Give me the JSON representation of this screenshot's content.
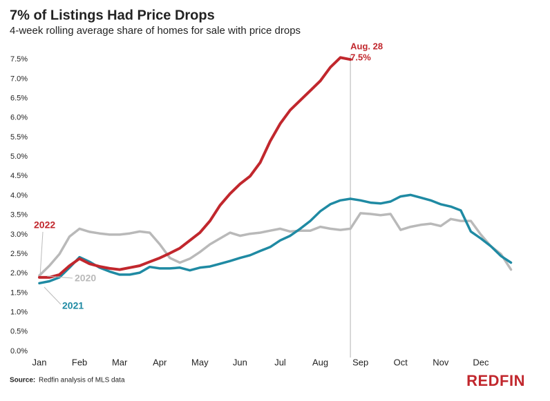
{
  "chart_data": {
    "type": "line",
    "title": "7% of Listings Had Price Drops",
    "subtitle": "4-week rolling average share of homes for sale with price drops",
    "source_label": "Source:",
    "source": "Redfin analysis of MLS data",
    "brand": "REDFIN",
    "x": [
      0,
      0.25,
      0.5,
      0.75,
      1,
      1.25,
      1.5,
      1.75,
      2,
      2.25,
      2.5,
      2.75,
      3,
      3.25,
      3.5,
      3.75,
      4,
      4.25,
      4.5,
      4.75,
      5,
      5.25,
      5.5,
      5.75,
      6,
      6.25,
      6.5,
      6.75,
      7,
      7.25,
      7.5,
      7.75,
      8,
      8.25,
      8.5,
      8.75,
      9,
      9.25,
      9.5,
      9.75,
      10,
      10.25,
      10.5,
      10.75,
      11,
      11.25,
      11.5,
      11.75
    ],
    "xlim": [
      0,
      12
    ],
    "xticks": [
      {
        "value": 0,
        "label": "Jan"
      },
      {
        "value": 1,
        "label": "Feb"
      },
      {
        "value": 2,
        "label": "Mar"
      },
      {
        "value": 3,
        "label": "Apr"
      },
      {
        "value": 4,
        "label": "May"
      },
      {
        "value": 5,
        "label": "Jun"
      },
      {
        "value": 6,
        "label": "Jul"
      },
      {
        "value": 7,
        "label": "Aug"
      },
      {
        "value": 8,
        "label": "Sep"
      },
      {
        "value": 9,
        "label": "Oct"
      },
      {
        "value": 10,
        "label": "Nov"
      },
      {
        "value": 11,
        "label": "Dec"
      }
    ],
    "ylim": [
      0,
      8
    ],
    "yticks": [
      {
        "value": 0,
        "label": "0.0%"
      },
      {
        "value": 0.5,
        "label": "0.5%"
      },
      {
        "value": 1,
        "label": "1.0%"
      },
      {
        "value": 1.5,
        "label": "1.5%"
      },
      {
        "value": 2,
        "label": "2.0%"
      },
      {
        "value": 2.5,
        "label": "2.5%"
      },
      {
        "value": 3,
        "label": "3.0%"
      },
      {
        "value": 3.5,
        "label": "3.5%"
      },
      {
        "value": 4,
        "label": "4.0%"
      },
      {
        "value": 4.5,
        "label": "4.5%"
      },
      {
        "value": 5,
        "label": "5.0%"
      },
      {
        "value": 5.5,
        "label": "5.5%"
      },
      {
        "value": 6,
        "label": "6.0%"
      },
      {
        "value": 6.5,
        "label": "6.5%"
      },
      {
        "value": 7,
        "label": "7.0%"
      },
      {
        "value": 7.5,
        "label": "7.5%"
      }
    ],
    "grid": false,
    "series": [
      {
        "name": "2020",
        "color": "#b9b9b9",
        "values": [
          1.95,
          2.2,
          2.5,
          2.95,
          3.15,
          3.07,
          3.03,
          3.0,
          3.0,
          3.03,
          3.08,
          3.05,
          2.75,
          2.4,
          2.28,
          2.38,
          2.55,
          2.75,
          2.9,
          3.05,
          2.97,
          3.02,
          3.05,
          3.1,
          3.15,
          3.08,
          3.1,
          3.1,
          3.2,
          3.15,
          3.12,
          3.15,
          3.55,
          3.53,
          3.5,
          3.53,
          3.12,
          3.2,
          3.25,
          3.28,
          3.22,
          3.4,
          3.35,
          3.35,
          3.0,
          2.7,
          2.5,
          2.1
        ]
      },
      {
        "name": "2021",
        "color": "#1f8aa3",
        "values": [
          1.75,
          1.8,
          1.9,
          2.15,
          2.42,
          2.3,
          2.15,
          2.05,
          1.97,
          1.97,
          2.02,
          2.17,
          2.13,
          2.13,
          2.15,
          2.08,
          2.15,
          2.18,
          2.25,
          2.32,
          2.4,
          2.47,
          2.58,
          2.68,
          2.85,
          2.97,
          3.15,
          3.35,
          3.6,
          3.78,
          3.88,
          3.92,
          3.88,
          3.82,
          3.8,
          3.85,
          3.98,
          4.02,
          3.95,
          3.88,
          3.78,
          3.72,
          3.62,
          3.08,
          2.9,
          2.7,
          2.45,
          2.28
        ]
      },
      {
        "name": "2022",
        "color": "#c1272d",
        "values": [
          1.9,
          1.9,
          1.97,
          2.2,
          2.38,
          2.25,
          2.18,
          2.13,
          2.1,
          2.15,
          2.2,
          2.3,
          2.4,
          2.52,
          2.65,
          2.85,
          3.05,
          3.35,
          3.75,
          4.05,
          4.3,
          4.5,
          4.85,
          5.4,
          5.85,
          6.2,
          6.45,
          6.7,
          6.95,
          7.3,
          7.55,
          7.5,
          null,
          null,
          null,
          null,
          null,
          null,
          null,
          null,
          null,
          null,
          null,
          null,
          null,
          null,
          null,
          null
        ]
      }
    ],
    "annotation": {
      "x": 7.75,
      "label": "Aug. 28",
      "y": 7.5,
      "value_label": "7.5%"
    }
  }
}
